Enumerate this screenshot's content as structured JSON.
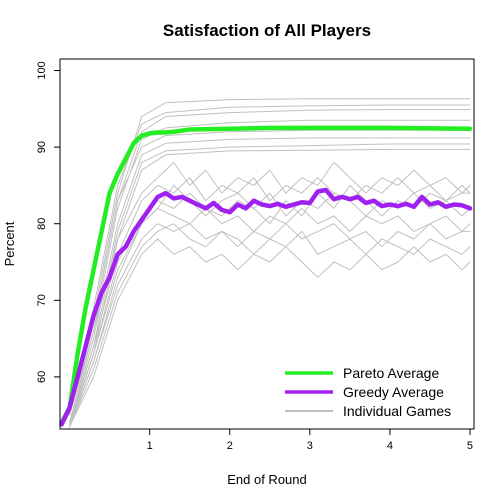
{
  "chart_data": {
    "type": "line",
    "title": "Satisfaction of All Players",
    "xlabel": "End of Round",
    "ylabel": "Percent",
    "xlim": [
      -0.12,
      5.05
    ],
    "ylim": [
      53.2,
      101.5
    ],
    "x_ticks": [
      1,
      2,
      3,
      4,
      5
    ],
    "y_ticks": [
      60,
      70,
      80,
      90,
      100
    ],
    "grid": false,
    "legend_position": "bottom-right",
    "legend": [
      {
        "label": "Pareto Average",
        "color": "#22ee22"
      },
      {
        "label": "Greedy Average",
        "color": "#a020f0"
      },
      {
        "label": "Individual Games",
        "color": "#c0c0c0"
      }
    ],
    "series": [
      {
        "name": "Pareto Average",
        "color": "#22ee22",
        "x": [
          -0.1,
          0.0,
          0.1,
          0.2,
          0.3,
          0.4,
          0.5,
          0.6,
          0.7,
          0.8,
          0.9,
          1.0,
          1.1,
          1.2,
          1.3,
          1.5,
          2.0,
          2.5,
          3.0,
          4.0,
          5.0
        ],
        "y": [
          54,
          56,
          63,
          69,
          74,
          79,
          84,
          86.5,
          88.5,
          90.5,
          91.5,
          91.8,
          91.9,
          91.9,
          92.0,
          92.3,
          92.4,
          92.5,
          92.5,
          92.5,
          92.4
        ]
      },
      {
        "name": "Greedy Average",
        "color": "#a020f0",
        "x": [
          -0.1,
          0.0,
          0.1,
          0.2,
          0.3,
          0.4,
          0.5,
          0.6,
          0.7,
          0.8,
          0.9,
          1.0,
          1.1,
          1.2,
          1.3,
          1.4,
          1.5,
          1.6,
          1.7,
          1.8,
          1.9,
          2.0,
          2.1,
          2.2,
          2.3,
          2.4,
          2.5,
          2.6,
          2.7,
          2.8,
          2.9,
          3.0,
          3.1,
          3.2,
          3.3,
          3.4,
          3.5,
          3.6,
          3.7,
          3.8,
          3.9,
          4.0,
          4.1,
          4.2,
          4.3,
          4.4,
          4.5,
          4.6,
          4.7,
          4.8,
          4.9,
          5.0
        ],
        "y": [
          53.8,
          56,
          60,
          64,
          68,
          71,
          73,
          76,
          77,
          79,
          80.5,
          82,
          83.5,
          84,
          83.3,
          83.5,
          83,
          82.5,
          82,
          82.7,
          81.8,
          81.5,
          82.5,
          82,
          83,
          82.5,
          82.3,
          82.6,
          82.2,
          82.5,
          82.8,
          82.7,
          84.2,
          84.4,
          83.2,
          83.5,
          83.2,
          83.5,
          82.7,
          83,
          82.3,
          82.5,
          82.3,
          82.6,
          82.2,
          83.5,
          82.5,
          82.8,
          82.2,
          82.5,
          82.4,
          82.0
        ]
      },
      {
        "name": "Individual Games",
        "color": "#c0c0c0",
        "x": [
          0.0,
          0.3,
          0.6,
          0.9,
          1.2,
          2.0,
          3.0,
          4.0,
          5.0
        ],
        "y": [
          55,
          68,
          84,
          94,
          95.8,
          96.2,
          96.3,
          96.3,
          96.3
        ]
      },
      {
        "name": "Individual Games",
        "color": "#c0c0c0",
        "x": [
          0.0,
          0.3,
          0.6,
          0.9,
          1.2,
          2.0,
          3.0,
          4.0,
          5.0
        ],
        "y": [
          56,
          69,
          85,
          93,
          94.5,
          95.2,
          95.4,
          95.5,
          95.5
        ]
      },
      {
        "name": "Individual Games",
        "color": "#c0c0c0",
        "x": [
          0.0,
          0.3,
          0.6,
          0.9,
          1.2,
          2.0,
          3.0,
          4.0,
          5.0
        ],
        "y": [
          55,
          67,
          83,
          92,
          94.0,
          94.5,
          94.8,
          94.9,
          94.9
        ]
      },
      {
        "name": "Individual Games",
        "color": "#c0c0c0",
        "x": [
          0.0,
          0.3,
          0.6,
          0.9,
          1.2,
          2.0,
          3.0,
          4.0,
          5.0
        ],
        "y": [
          54,
          66,
          82,
          91,
          92.5,
          93.2,
          93.5,
          93.5,
          93.5
        ]
      },
      {
        "name": "Individual Games",
        "color": "#c0c0c0",
        "x": [
          0.0,
          0.3,
          0.6,
          0.9,
          1.2,
          2.0,
          3.0,
          4.0,
          5.0
        ],
        "y": [
          55,
          67,
          83,
          90,
          91.5,
          92.0,
          92.2,
          92.2,
          92.2
        ]
      },
      {
        "name": "Individual Games",
        "color": "#c0c0c0",
        "x": [
          0.0,
          0.3,
          0.6,
          0.9,
          1.2,
          2.0,
          3.0,
          4.0,
          5.0
        ],
        "y": [
          54,
          65,
          80,
          89,
          90.5,
          91.0,
          91.2,
          91.2,
          91.2
        ]
      },
      {
        "name": "Individual Games",
        "color": "#c0c0c0",
        "x": [
          0.0,
          0.3,
          0.6,
          0.9,
          1.2,
          2.0,
          3.0,
          4.0,
          5.0
        ],
        "y": [
          54,
          64,
          79,
          88,
          89.5,
          90.0,
          90.2,
          90.4,
          90.4
        ]
      },
      {
        "name": "Individual Games",
        "color": "#c0c0c0",
        "x": [
          0.0,
          0.3,
          0.6,
          0.9,
          1.2,
          2.0,
          3.0,
          4.0,
          5.0
        ],
        "y": [
          53.5,
          63,
          78,
          87,
          89.0,
          89.5,
          89.6,
          89.7,
          89.7
        ]
      },
      {
        "name": "Individual Games",
        "color": "#c0c0c0",
        "x": [
          0.0,
          0.3,
          0.6,
          0.9,
          1.1,
          1.3,
          1.5,
          1.7,
          1.9,
          2.1,
          2.3,
          2.5,
          2.7,
          2.9,
          3.1,
          3.3,
          3.5,
          3.7,
          3.9,
          4.1,
          4.3,
          4.5,
          4.7,
          4.9,
          5.0
        ],
        "y": [
          55,
          66,
          78,
          84,
          86,
          88,
          85,
          87,
          84,
          86,
          85,
          87,
          84,
          86,
          85,
          88,
          86,
          84,
          86,
          85,
          87,
          85,
          86,
          84,
          85
        ]
      },
      {
        "name": "Individual Games",
        "color": "#c0c0c0",
        "x": [
          0.0,
          0.3,
          0.6,
          0.9,
          1.1,
          1.3,
          1.5,
          1.7,
          1.9,
          2.1,
          2.3,
          2.5,
          2.7,
          2.9,
          3.1,
          3.3,
          3.5,
          3.7,
          3.9,
          4.1,
          4.3,
          4.5,
          4.7,
          4.9,
          5.0
        ],
        "y": [
          54,
          64,
          76,
          83,
          85,
          84,
          86,
          83,
          85,
          84,
          86,
          83,
          85,
          84,
          86,
          84,
          83,
          85,
          84,
          86,
          84,
          85,
          83,
          84,
          84
        ]
      },
      {
        "name": "Individual Games",
        "color": "#c0c0c0",
        "x": [
          0.0,
          0.3,
          0.6,
          0.9,
          1.1,
          1.3,
          1.5,
          1.7,
          1.9,
          2.1,
          2.3,
          2.5,
          2.7,
          2.9,
          3.1,
          3.3,
          3.5,
          3.7,
          3.9,
          4.1,
          4.3,
          4.5,
          4.7,
          4.9,
          5.0
        ],
        "y": [
          53.5,
          63,
          75,
          81,
          83,
          82,
          84,
          82,
          81,
          83,
          82,
          84,
          81,
          83,
          82,
          84,
          83,
          81,
          83,
          82,
          84,
          82,
          83,
          81,
          82
        ]
      },
      {
        "name": "Individual Games",
        "color": "#c0c0c0",
        "x": [
          0.0,
          0.3,
          0.6,
          0.9,
          1.1,
          1.3,
          1.5,
          1.7,
          1.9,
          2.1,
          2.3,
          2.5,
          2.7,
          2.9,
          3.1,
          3.3,
          3.5,
          3.7,
          3.9,
          4.1,
          4.3,
          4.5,
          4.7,
          4.9,
          5.0
        ],
        "y": [
          54,
          63,
          74,
          80,
          82,
          81,
          80,
          82,
          80,
          81,
          79,
          81,
          80,
          82,
          80,
          81,
          79,
          81,
          80,
          81,
          79,
          80,
          81,
          79,
          80
        ]
      },
      {
        "name": "Individual Games",
        "color": "#c0c0c0",
        "x": [
          0.0,
          0.3,
          0.6,
          0.9,
          1.1,
          1.3,
          1.5,
          1.7,
          1.9,
          2.1,
          2.3,
          2.5,
          2.7,
          2.9,
          3.1,
          3.3,
          3.5,
          3.7,
          3.9,
          4.1,
          4.3,
          4.5,
          4.7,
          4.9,
          5.0
        ],
        "y": [
          53.5,
          62,
          72,
          78,
          80,
          79,
          80,
          78,
          79,
          77,
          79,
          78,
          80,
          78,
          79,
          80,
          78,
          79,
          77,
          79,
          78,
          80,
          78,
          79,
          79
        ]
      },
      {
        "name": "Individual Games",
        "color": "#c0c0c0",
        "x": [
          0.0,
          0.3,
          0.6,
          0.9,
          1.1,
          1.3,
          1.5,
          1.7,
          1.9,
          2.1,
          2.3,
          2.5,
          2.7,
          2.9,
          3.1,
          3.3,
          3.5,
          3.7,
          3.9,
          4.1,
          4.3,
          4.5,
          4.7,
          4.9,
          5.0
        ],
        "y": [
          53.5,
          61,
          71,
          77,
          79,
          80,
          78,
          77,
          79,
          78,
          76,
          78,
          77,
          79,
          76,
          77,
          78,
          76,
          78,
          77,
          76,
          78,
          77,
          76,
          77
        ]
      },
      {
        "name": "Individual Games",
        "color": "#c0c0c0",
        "x": [
          0.0,
          0.3,
          0.6,
          0.9,
          1.1,
          1.3,
          1.5,
          1.7,
          1.9,
          2.1,
          2.3,
          2.5,
          2.7,
          2.9,
          3.1,
          3.3,
          3.5,
          3.7,
          3.9,
          4.1,
          4.3,
          4.5,
          4.7,
          4.9,
          5.0
        ],
        "y": [
          53.5,
          60,
          70,
          76,
          78,
          76,
          77,
          75,
          76,
          74,
          76,
          75,
          77,
          75,
          73,
          75,
          74,
          76,
          74,
          75,
          77,
          75,
          76,
          74,
          75
        ]
      },
      {
        "name": "Individual Games",
        "color": "#c0c0c0",
        "x": [
          0.0,
          0.3,
          0.6,
          0.9,
          1.1,
          1.3,
          1.5,
          1.7,
          1.9,
          2.1,
          2.3,
          2.5,
          2.7,
          2.9,
          3.1,
          3.3,
          3.5,
          3.7,
          3.9,
          4.1,
          4.3,
          4.5,
          4.7,
          4.9,
          5.0
        ],
        "y": [
          53.5,
          62,
          73,
          80,
          82,
          85,
          83,
          81,
          83,
          84,
          82,
          80,
          83,
          81,
          84,
          82,
          85,
          83,
          81,
          83,
          82,
          84,
          83,
          85,
          84
        ]
      }
    ]
  }
}
